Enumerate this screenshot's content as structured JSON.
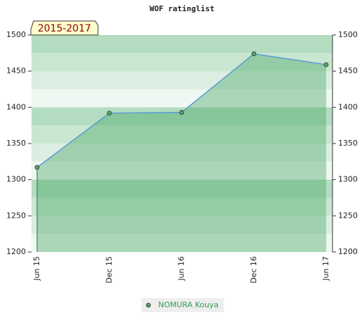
{
  "chart_data": {
    "type": "area",
    "title": "WOF ratinglist",
    "subtitle": "2015-2017",
    "categories": [
      "Jun 15",
      "Dec 15",
      "Jun 16",
      "Dec 16",
      "Jun 17"
    ],
    "series": [
      {
        "name": "NOMURA Kouya",
        "color": "#5b9bd5",
        "marker_color": "#5a9e6f",
        "values": [
          1317,
          1392,
          1393,
          1474,
          1459
        ]
      }
    ],
    "ylim": [
      1200,
      1500
    ],
    "yticks": [
      1200,
      1250,
      1300,
      1350,
      1400,
      1450,
      1500
    ],
    "y2lim": [
      1200,
      1500
    ],
    "y2ticks": [
      1200,
      1250,
      1300,
      1350,
      1400,
      1450,
      1500
    ]
  }
}
